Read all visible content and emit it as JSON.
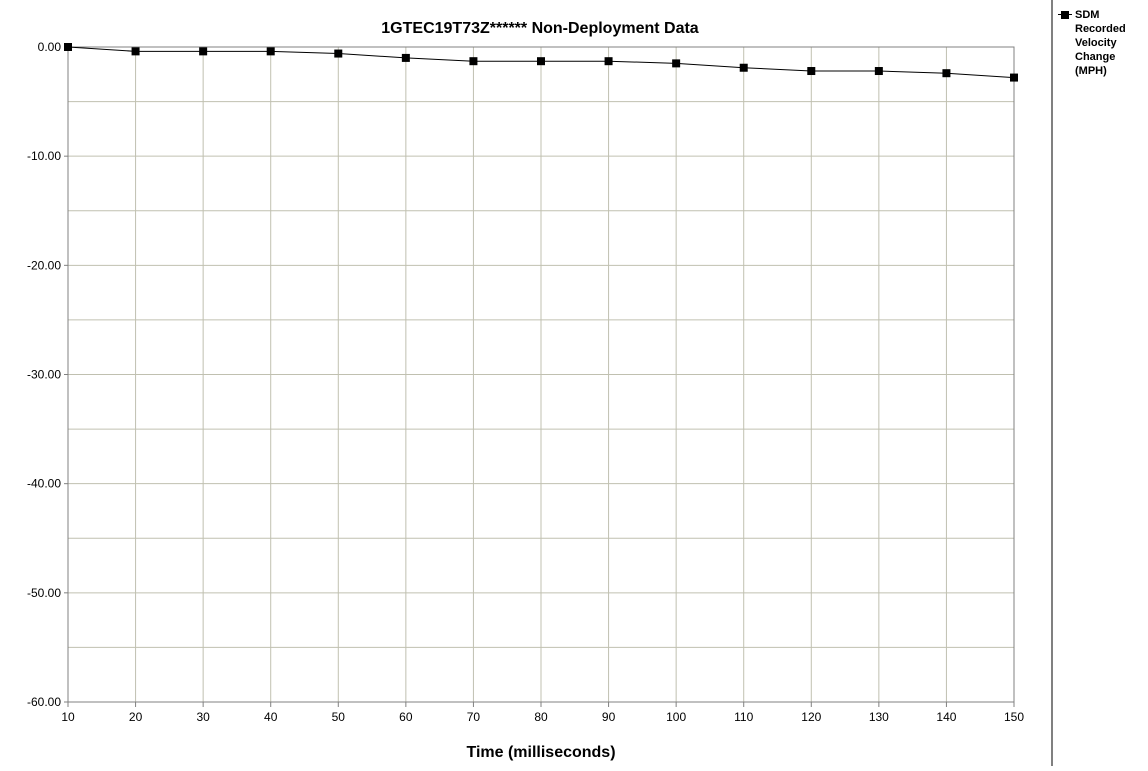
{
  "chart_data": {
    "type": "line",
    "title": "1GTEC19T73Z******  Non-Deployment Data",
    "xlabel": "Time (milliseconds)",
    "ylabel": "",
    "x": [
      10,
      20,
      30,
      40,
      50,
      60,
      70,
      80,
      90,
      100,
      110,
      120,
      130,
      140,
      150
    ],
    "xlim": [
      10,
      150
    ],
    "ylim": [
      -60,
      0
    ],
    "x_ticks": [
      "10",
      "20",
      "30",
      "40",
      "50",
      "60",
      "70",
      "80",
      "90",
      "100",
      "110",
      "120",
      "130",
      "140",
      "150"
    ],
    "y_ticks": [
      "0.00",
      "-10.00",
      "-20.00",
      "-30.00",
      "-40.00",
      "-50.00",
      "-60.00"
    ],
    "y_tick_values": [
      0,
      -10,
      -20,
      -30,
      -40,
      -50,
      -60
    ],
    "grid": true,
    "legend_position": "right",
    "series": [
      {
        "name": "SDM Recorded Velocity Change (MPH)",
        "marker": "square",
        "color": "#000000",
        "values": [
          0.0,
          -0.4,
          -0.4,
          -0.4,
          -0.6,
          -1.0,
          -1.3,
          -1.3,
          -1.3,
          -1.5,
          -1.9,
          -2.2,
          -2.2,
          -2.4,
          -2.8
        ]
      }
    ]
  },
  "colors": {
    "gridline": "#c0c0b0",
    "axis": "#808080",
    "series": "#000000"
  }
}
